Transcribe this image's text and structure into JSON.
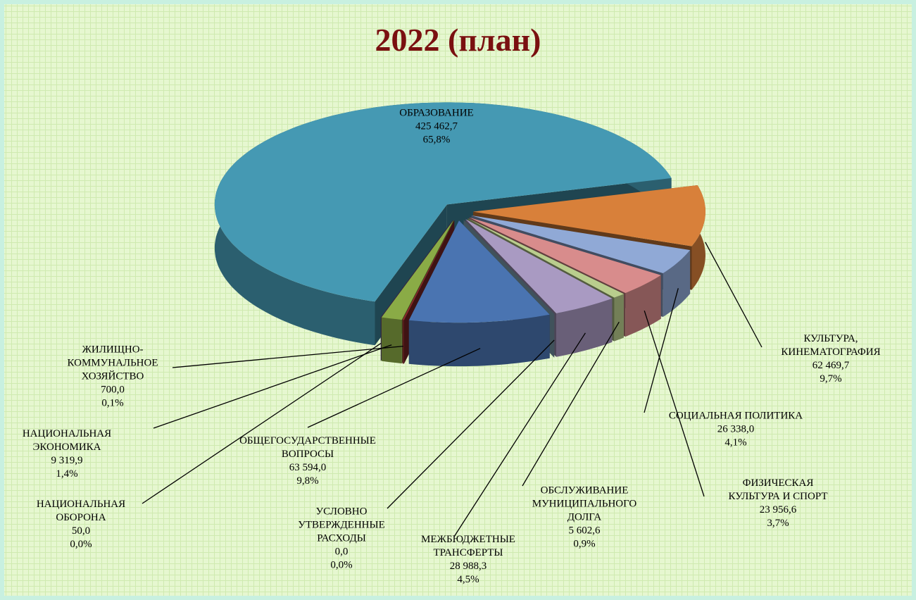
{
  "chart_data": {
    "type": "pie3d",
    "title": "2022 (план)",
    "categories": [
      "ОБРАЗОВАНИЕ",
      "КУЛЬТУРА,\nКИНЕМАТОГРАФИЯ",
      "СОЦИАЛЬНАЯ ПОЛИТИКА",
      "ФИЗИЧЕСКАЯ\nКУЛЬТУРА И СПОРТ",
      "ОБСЛУЖИВАНИЕ\nМУНИЦИПАЛЬНОГО\nДОЛГА",
      "МЕЖБЮДЖЕТНЫЕ\nТРАНСФЕРТЫ",
      "УСЛОВНО\nУТВЕРЖДЕННЫЕ\nРАСХОДЫ",
      "ОБЩЕГОСУДАРСТВЕННЫЕ\nВОПРОСЫ",
      "ЖИЛИЩНО-\nКОММУНАЛЬНОЕ\nХОЗЯЙСТВО",
      "НАЦИОНАЛЬНАЯ\nЭКОНОМИКА",
      "НАЦИОНАЛЬНАЯ\nОБОРОНА"
    ],
    "values": [
      425462.7,
      62469.7,
      26338.0,
      23956.6,
      5602.6,
      28988.3,
      0.0,
      63594.0,
      700.0,
      9319.9,
      50.0
    ],
    "value_labels": [
      "425 462,7",
      "62 469,7",
      "26 338,0",
      "23 956,6",
      "5 602,6",
      "28 988,3",
      "0,0",
      "63 594,0",
      "700,0",
      "9 319,9",
      "50,0"
    ],
    "percents": [
      65.8,
      9.7,
      4.1,
      3.7,
      0.9,
      4.5,
      0.0,
      9.8,
      0.1,
      1.4,
      0.0
    ],
    "percent_labels": [
      "65,8%",
      "9,7%",
      "4,1%",
      "3,7%",
      "0,9%",
      "4,5%",
      "0,0%",
      "9,8%",
      "0,1%",
      "1,4%",
      "0,0%"
    ],
    "colors": [
      "#4599b3",
      "#d8803a",
      "#90a9d6",
      "#d88c8c",
      "#b9cd8d",
      "#a99ac2",
      "#8fb6ca",
      "#4a74b1",
      "#8b2b2b",
      "#8aab46",
      "#6b4b8c"
    ]
  }
}
